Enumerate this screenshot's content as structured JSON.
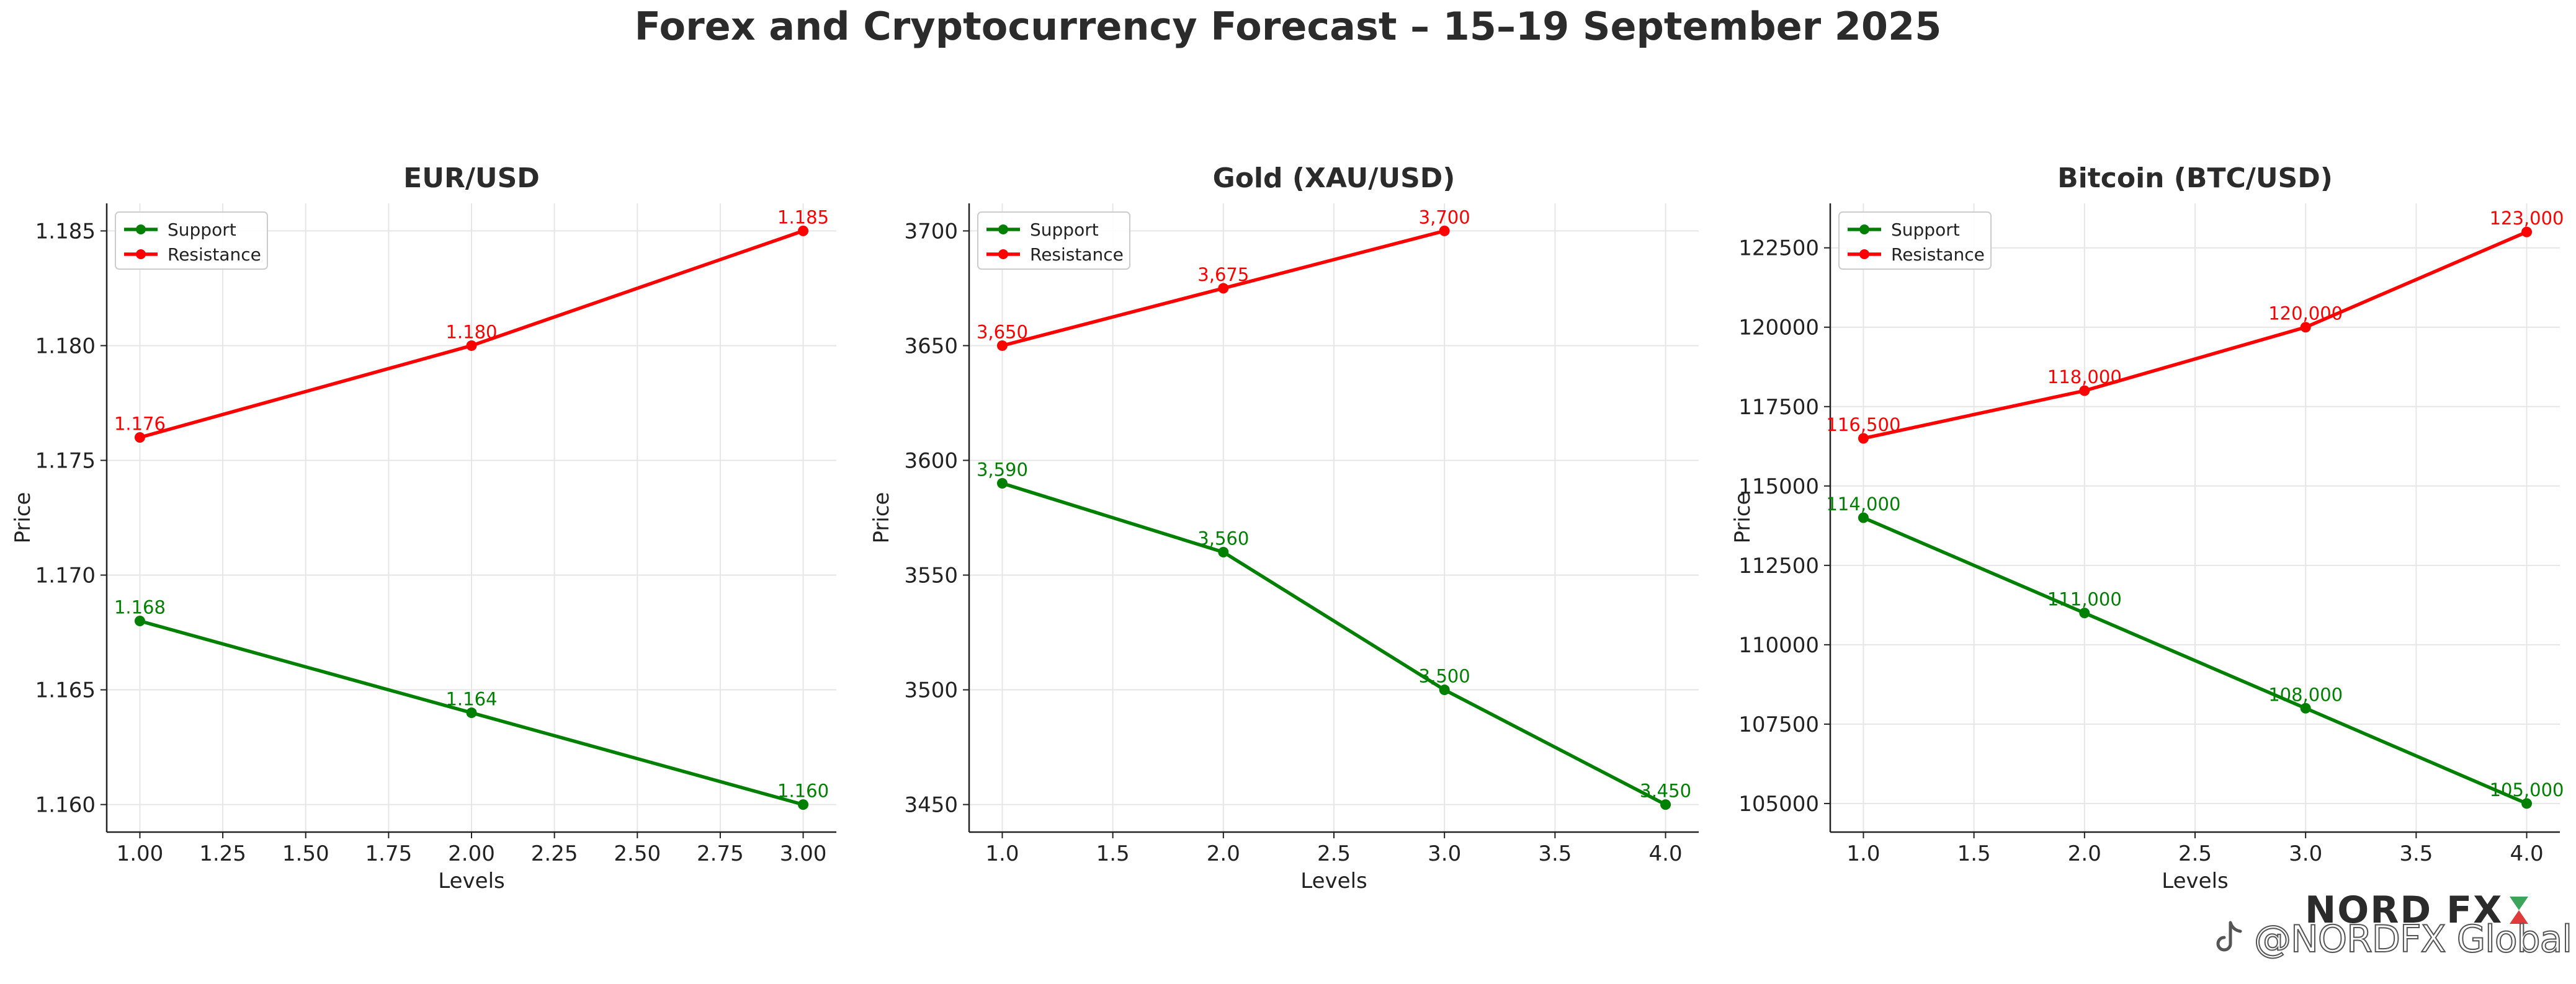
{
  "title": "Forex and Cryptocurrency Forecast – 15–19 September 2025",
  "watermark": {
    "brand": "NORD FX",
    "handle": "@NORDFX Global",
    "brand_colors": [
      "#2b2b2b",
      "#3ba55c",
      "#e03a3a"
    ]
  },
  "colors": {
    "support": "#008000",
    "resistance": "#ff0000",
    "text": "#222222",
    "grid": "#e6e6e6"
  },
  "chart_data": [
    {
      "type": "line",
      "title": "EUR/USD",
      "xlabel": "Levels",
      "ylabel": "Price",
      "xlim": [
        0.9,
        3.1
      ],
      "ylim": [
        1.1588,
        1.1862
      ],
      "xticks": [
        1.0,
        1.25,
        1.5,
        1.75,
        2.0,
        2.25,
        2.5,
        2.75,
        3.0
      ],
      "xtick_labels": [
        "1.00",
        "1.25",
        "1.50",
        "1.75",
        "2.00",
        "2.25",
        "2.50",
        "2.75",
        "3.00"
      ],
      "yticks": [
        1.16,
        1.165,
        1.17,
        1.175,
        1.18,
        1.185
      ],
      "ytick_labels": [
        "1.160",
        "1.165",
        "1.170",
        "1.175",
        "1.180",
        "1.185"
      ],
      "grid": true,
      "legend": "top-left",
      "series": [
        {
          "name": "Support",
          "color": "#008000",
          "x": [
            1,
            2,
            3
          ],
          "y": [
            1.168,
            1.164,
            1.16
          ],
          "labels": [
            "1.168",
            "1.164",
            "1.160"
          ]
        },
        {
          "name": "Resistance",
          "color": "#ff0000",
          "x": [
            1,
            2,
            3
          ],
          "y": [
            1.176,
            1.18,
            1.185
          ],
          "labels": [
            "1.176",
            "1.180",
            "1.185"
          ]
        }
      ]
    },
    {
      "type": "line",
      "title": "Gold (XAU/USD)",
      "xlabel": "Levels",
      "ylabel": "Price",
      "xlim": [
        0.85,
        4.15
      ],
      "ylim": [
        3438,
        3712
      ],
      "xticks": [
        1.0,
        1.5,
        2.0,
        2.5,
        3.0,
        3.5,
        4.0
      ],
      "xtick_labels": [
        "1.0",
        "1.5",
        "2.0",
        "2.5",
        "3.0",
        "3.5",
        "4.0"
      ],
      "yticks": [
        3450,
        3500,
        3550,
        3600,
        3650,
        3700
      ],
      "ytick_labels": [
        "3450",
        "3500",
        "3550",
        "3600",
        "3650",
        "3700"
      ],
      "grid": true,
      "legend": "top-left",
      "series": [
        {
          "name": "Support",
          "color": "#008000",
          "x": [
            1,
            2,
            3,
            4
          ],
          "y": [
            3590,
            3560,
            3500,
            3450
          ],
          "labels": [
            "3,590",
            "3,560",
            "3,500",
            "3,450"
          ]
        },
        {
          "name": "Resistance",
          "color": "#ff0000",
          "x": [
            1,
            2,
            3
          ],
          "y": [
            3650,
            3675,
            3700
          ],
          "labels": [
            "3,650",
            "3,675",
            "3,700"
          ]
        }
      ]
    },
    {
      "type": "line",
      "title": "Bitcoin (BTC/USD)",
      "xlabel": "Levels",
      "ylabel": "Price",
      "xlim": [
        0.85,
        4.15
      ],
      "ylim": [
        104100,
        123900
      ],
      "xticks": [
        1.0,
        1.5,
        2.0,
        2.5,
        3.0,
        3.5,
        4.0
      ],
      "xtick_labels": [
        "1.0",
        "1.5",
        "2.0",
        "2.5",
        "3.0",
        "3.5",
        "4.0"
      ],
      "yticks": [
        105000,
        107500,
        110000,
        112500,
        115000,
        117500,
        120000,
        122500
      ],
      "ytick_labels": [
        "105000",
        "107500",
        "110000",
        "112500",
        "115000",
        "117500",
        "120000",
        "122500"
      ],
      "grid": true,
      "legend": "top-left",
      "series": [
        {
          "name": "Support",
          "color": "#008000",
          "x": [
            1,
            2,
            3,
            4
          ],
          "y": [
            114000,
            111000,
            108000,
            105000
          ],
          "labels": [
            "114,000",
            "111,000",
            "108,000",
            "105,000"
          ]
        },
        {
          "name": "Resistance",
          "color": "#ff0000",
          "x": [
            1,
            2,
            3,
            4
          ],
          "y": [
            116500,
            118000,
            120000,
            123000
          ],
          "labels": [
            "116,500",
            "118,000",
            "120,000",
            "123,000"
          ]
        }
      ]
    }
  ]
}
